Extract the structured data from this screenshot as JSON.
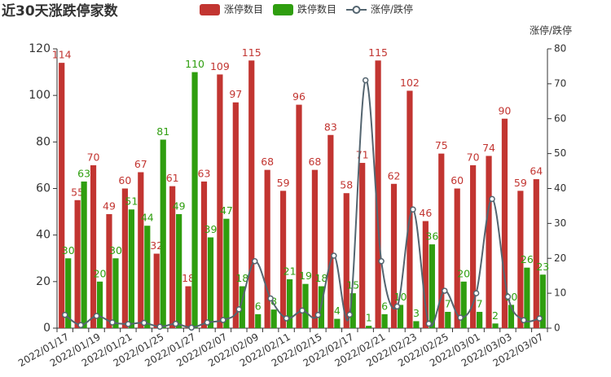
{
  "chart_data": {
    "type": "bar",
    "title": "近30天涨跌停家数",
    "y2label": "涨停/跌停",
    "categories": [
      "2022/01/17",
      null,
      "2022/01/19",
      null,
      "2022/01/21",
      null,
      "2022/01/25",
      null,
      "2022/01/27",
      null,
      "2022/02/07",
      null,
      "2022/02/09",
      null,
      "2022/02/11",
      null,
      "2022/02/15",
      null,
      "2022/02/17",
      null,
      "2022/02/21",
      null,
      "2022/02/23",
      null,
      "2022/02/25",
      null,
      "2022/03/01",
      null,
      "2022/03/03",
      null,
      "2022/03/07"
    ],
    "series": [
      {
        "name": "涨停数目",
        "type": "bar",
        "color": "#c23531",
        "values": [
          114,
          55,
          70,
          49,
          60,
          67,
          32,
          61,
          18,
          63,
          109,
          97,
          115,
          68,
          59,
          96,
          68,
          83,
          58,
          71,
          115,
          62,
          102,
          46,
          75,
          60,
          70,
          74,
          90,
          59,
          64
        ]
      },
      {
        "name": "跌停数目",
        "type": "bar",
        "color": "#2f9e0f",
        "values": [
          30,
          63,
          20,
          30,
          51,
          44,
          81,
          49,
          110,
          39,
          47,
          18,
          6,
          8,
          21,
          19,
          18,
          4,
          15,
          1,
          6,
          10,
          3,
          36,
          7,
          20,
          7,
          2,
          10,
          26,
          23
        ]
      },
      {
        "name": "涨停/跌停",
        "type": "line",
        "axis": "y2",
        "color": "#546570",
        "values": [
          3.8,
          0.87,
          3.5,
          1.63,
          1.18,
          1.52,
          0.4,
          1.24,
          0.16,
          1.62,
          2.32,
          5.39,
          19.17,
          8.5,
          2.81,
          5.05,
          3.78,
          20.75,
          3.87,
          71,
          19.17,
          6.2,
          34,
          1.28,
          10.71,
          3,
          10,
          37,
          9,
          2.27,
          2.78
        ]
      }
    ],
    "ylim": [
      0,
      120
    ],
    "yticks": [
      0,
      20,
      40,
      60,
      80,
      100,
      120
    ],
    "y2lim": [
      0,
      80
    ],
    "y2ticks": [
      0,
      10,
      20,
      30,
      40,
      50,
      60,
      70,
      80
    ],
    "grid": false
  }
}
